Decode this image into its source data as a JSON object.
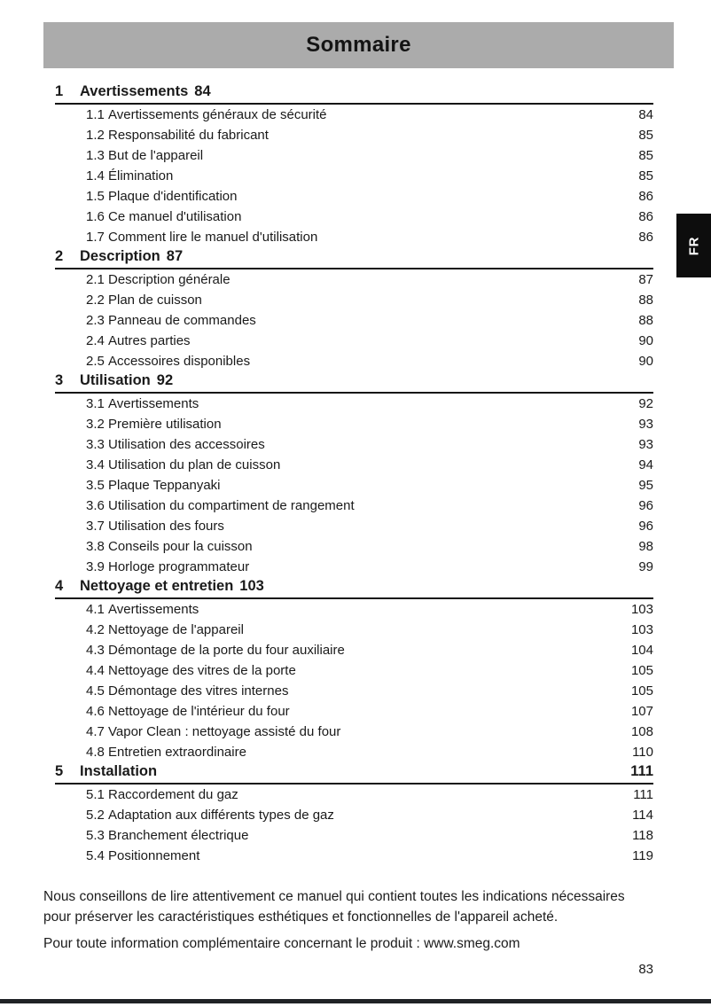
{
  "page": {
    "header_title": "Sommaire",
    "language_tab": "FR",
    "page_number": "83",
    "footer": {
      "para1_line1": "Nous conseillons de lire attentivement ce manuel qui contient toutes les indications nécessaires",
      "para1_line2": "pour préserver les caractéristiques esthétiques et fonctionnelles de l'appareil acheté.",
      "para2": "Pour toute information complémentaire concernant le produit : www.smeg.com"
    }
  },
  "toc": {
    "sections": [
      {
        "number": "1",
        "title": "Avertissements",
        "page": "84",
        "items": [
          {
            "number": "1.1",
            "label": "Avertissements généraux de sécurité",
            "page": "84"
          },
          {
            "number": "1.2",
            "label": "Responsabilité du fabricant",
            "page": "85"
          },
          {
            "number": "1.3",
            "label": "But de l'appareil",
            "page": "85"
          },
          {
            "number": "1.4",
            "label": "Élimination",
            "page": "85"
          },
          {
            "number": "1.5",
            "label": "Plaque d'identification",
            "page": "86"
          },
          {
            "number": "1.6",
            "label": "Ce manuel d'utilisation",
            "page": "86"
          },
          {
            "number": "1.7",
            "label": "Comment lire le manuel d'utilisation",
            "page": "86"
          }
        ]
      },
      {
        "number": "2",
        "title": "Description",
        "page": "87",
        "items": [
          {
            "number": "2.1",
            "label": "Description générale",
            "page": "87"
          },
          {
            "number": "2.2",
            "label": "Plan de cuisson",
            "page": "88"
          },
          {
            "number": "2.3",
            "label": "Panneau de commandes",
            "page": "88"
          },
          {
            "number": "2.4",
            "label": "Autres parties",
            "page": "90"
          },
          {
            "number": "2.5",
            "label": "Accessoires disponibles",
            "page": "90"
          }
        ]
      },
      {
        "number": "3",
        "title": "Utilisation",
        "page": "92",
        "items": [
          {
            "number": "3.1",
            "label": "Avertissements",
            "page": "92"
          },
          {
            "number": "3.2",
            "label": "Première utilisation",
            "page": "93"
          },
          {
            "number": "3.3",
            "label": "Utilisation des accessoires",
            "page": "93"
          },
          {
            "number": "3.4",
            "label": "Utilisation du plan de cuisson",
            "page": "94"
          },
          {
            "number": "3.5",
            "label": "Plaque Teppanyaki",
            "page": "95"
          },
          {
            "number": "3.6",
            "label": "Utilisation du compartiment de rangement",
            "page": "96"
          },
          {
            "number": "3.7",
            "label": "Utilisation des fours",
            "page": "96"
          },
          {
            "number": "3.8",
            "label": "Conseils pour la cuisson",
            "page": "98"
          },
          {
            "number": "3.9",
            "label": "Horloge programmateur",
            "page": "99"
          }
        ]
      },
      {
        "number": "4",
        "title": "Nettoyage et entretien",
        "page": "103",
        "items": [
          {
            "number": "4.1",
            "label": "Avertissements",
            "page": "103"
          },
          {
            "number": "4.2",
            "label": "Nettoyage de l'appareil",
            "page": "103"
          },
          {
            "number": "4.3",
            "label": "Démontage de la porte du four auxiliaire",
            "page": "104"
          },
          {
            "number": "4.4",
            "label": "Nettoyage des vitres de la porte",
            "page": "105"
          },
          {
            "number": "4.5",
            "label": "Démontage des vitres internes",
            "page": "105"
          },
          {
            "number": "4.6",
            "label": "Nettoyage de l'intérieur du four",
            "page": "107"
          },
          {
            "number": "4.7",
            "label": "Vapor Clean : nettoyage assisté du four",
            "page": "108"
          },
          {
            "number": "4.8",
            "label": "Entretien extraordinaire",
            "page": "110"
          }
        ]
      },
      {
        "number": "5",
        "title": "Installation",
        "page": "111",
        "items": [
          {
            "number": "5.1",
            "label": "Raccordement du gaz",
            "page": "111"
          },
          {
            "number": "5.2",
            "label": "Adaptation aux différents types de gaz",
            "page": "114"
          },
          {
            "number": "5.3",
            "label": "Branchement électrique",
            "page": "118"
          },
          {
            "number": "5.4",
            "label": "Positionnement",
            "page": "119"
          }
        ]
      }
    ]
  }
}
